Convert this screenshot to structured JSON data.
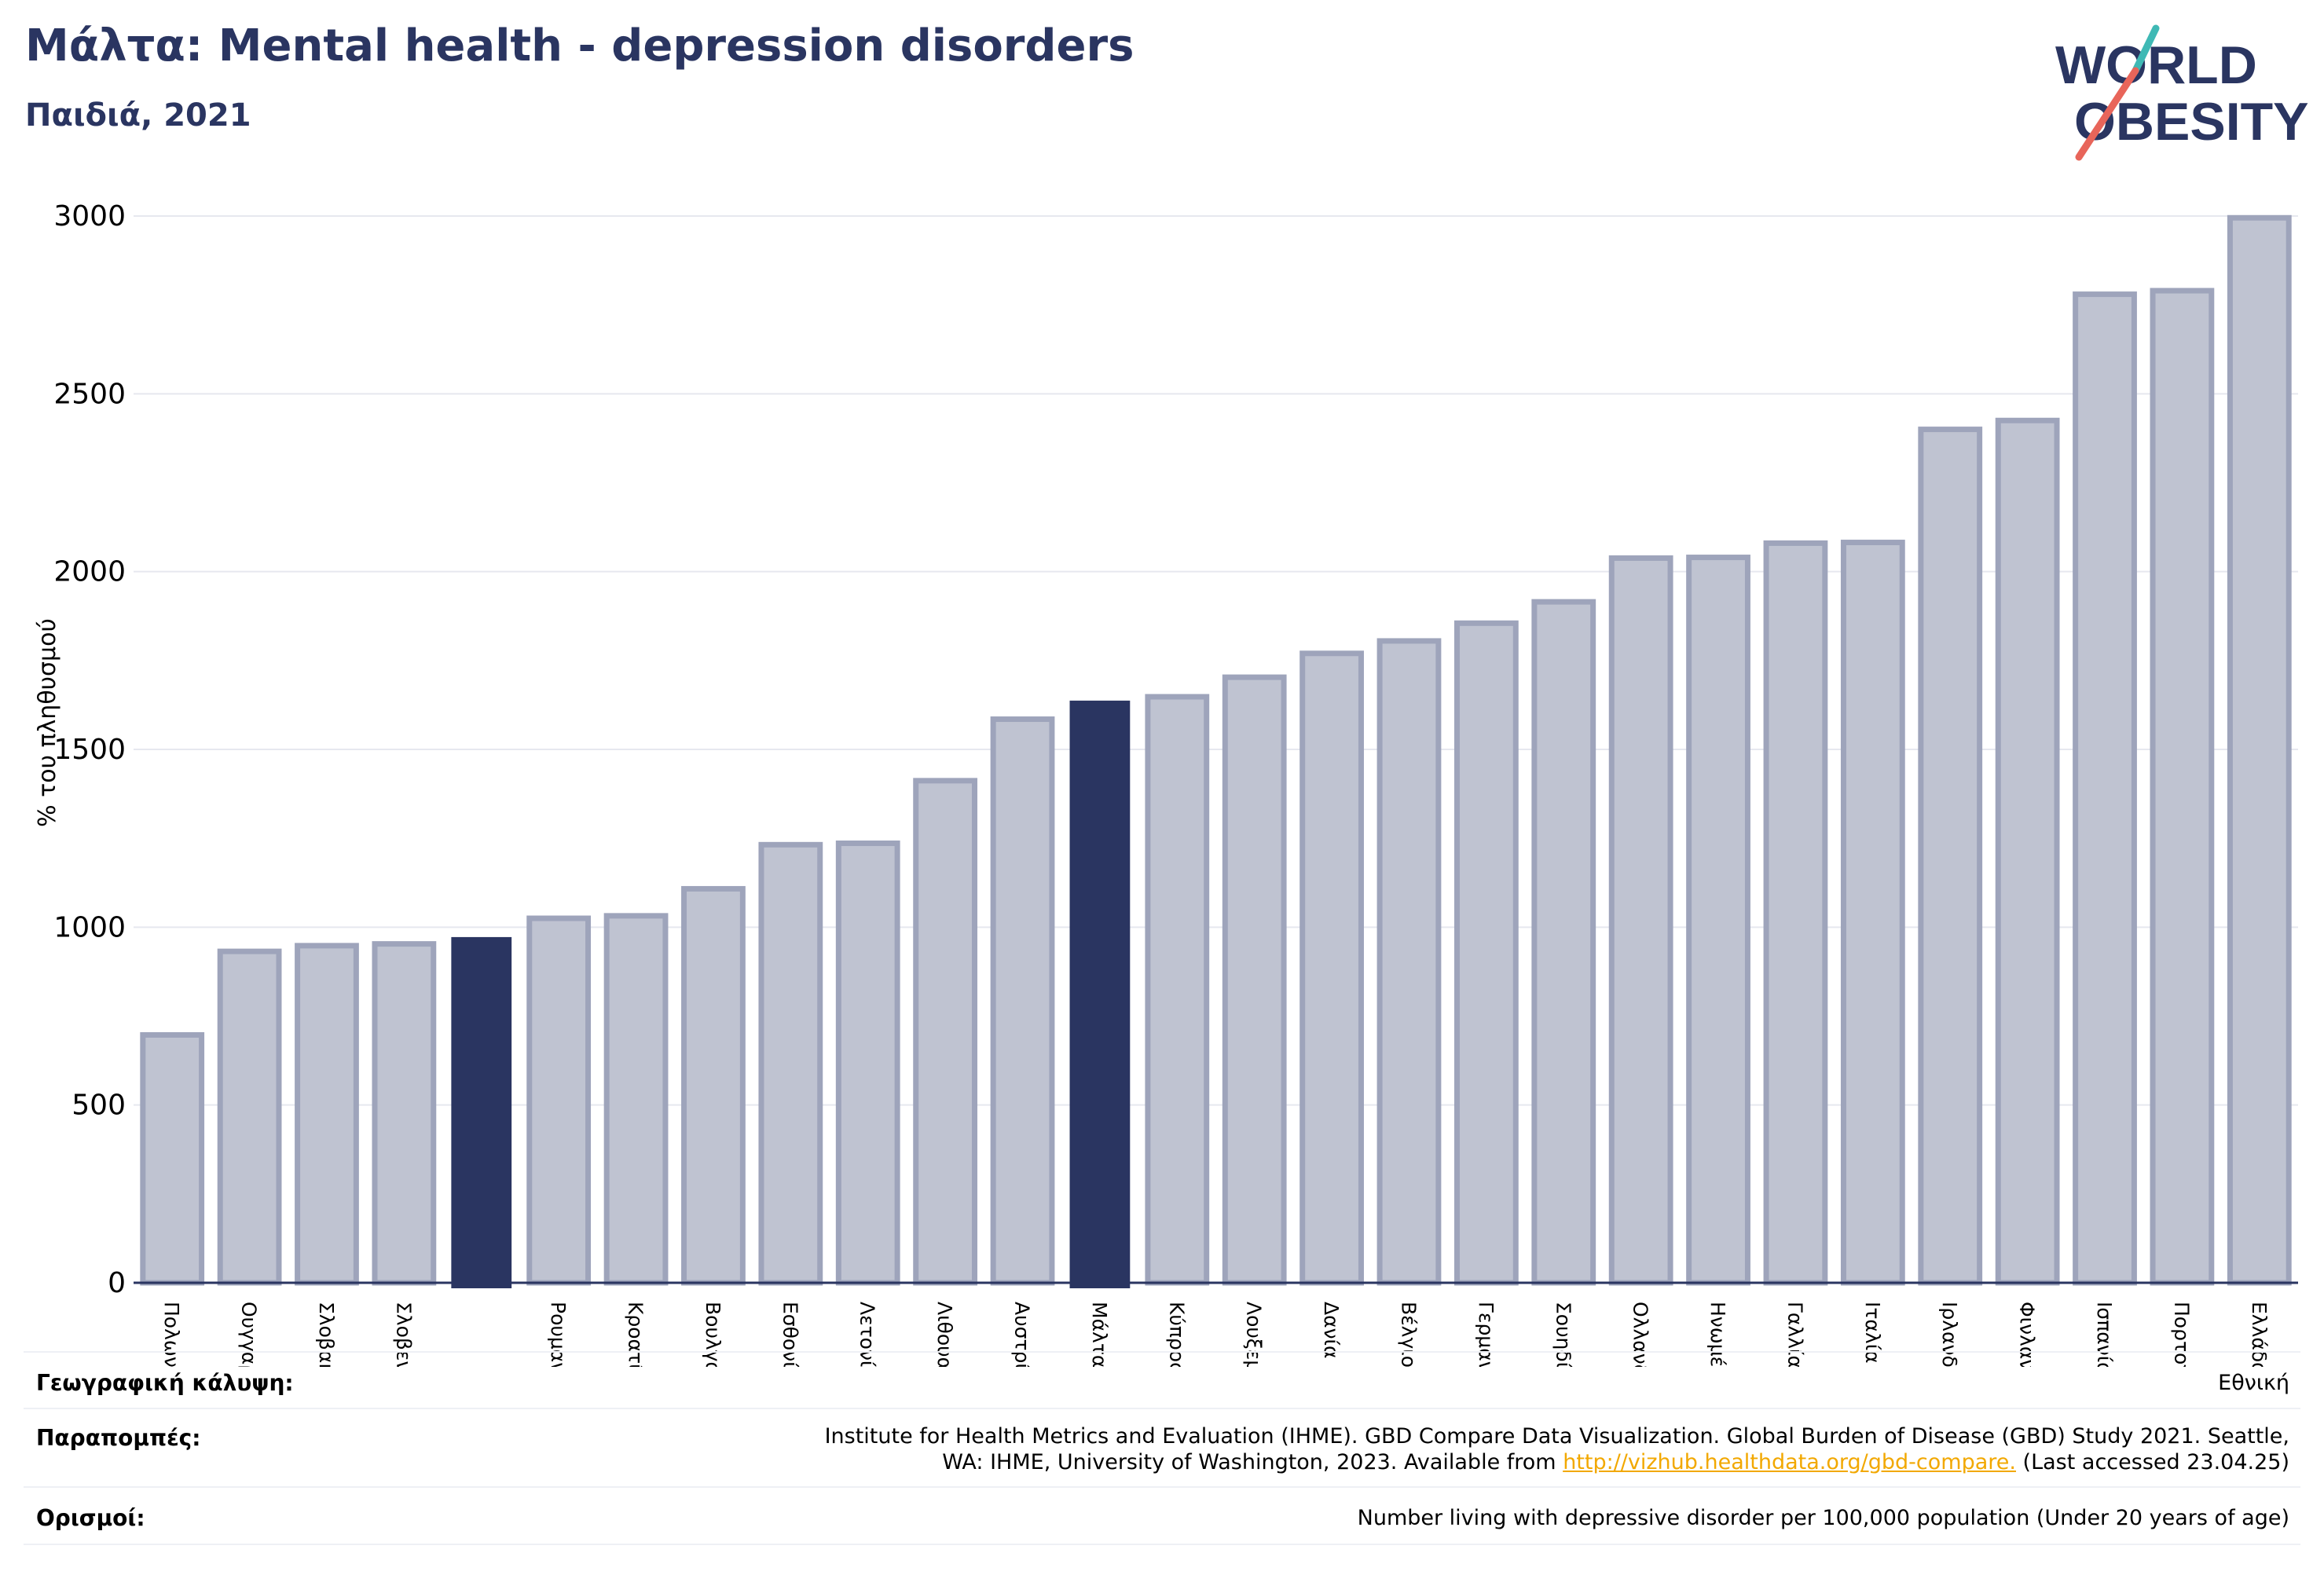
{
  "header": {
    "title": "Μάλτα: Mental health - depression disorders",
    "subtitle": "Παιδιά, 2021"
  },
  "logo": {
    "line1": "WORLD",
    "line2": "OBESITY",
    "icon": "world-obesity-logo"
  },
  "colors": {
    "highlight": "#2a3561",
    "bar_fill": "#bfc3d1",
    "bar_stroke": "#9ea4bb",
    "grid": "#e6e8ef",
    "logo_teal": "#3fb9b5",
    "logo_coral": "#e8655a"
  },
  "chart_data": {
    "type": "bar",
    "ylabel": "% του πληθυσμού",
    "ylim": [
      0,
      3000
    ],
    "yticks": [
      0,
      500,
      1000,
      1500,
      2000,
      2500,
      3000
    ],
    "grid": true,
    "categories": [
      "Πολωνία",
      "Ουγγαρία",
      "Σλοβακία",
      "Σλοβενία",
      "",
      "Ρουμανία",
      "Κροατία",
      "Βουλγαρία",
      "Εσθονία",
      "Λετονία",
      "Λιθουανία",
      "Αυστρία",
      "Μάλτα",
      "Κύπρος",
      "Λουξεμβούργο",
      "Δανία",
      "Βέλγιο",
      "Γερμανία",
      "Σουηδία",
      "Ολλανδία",
      "Ηνωμένο Βασίλειο",
      "Γαλλία",
      "Ιταλία",
      "Ιρλανδία",
      "Φινλανδία",
      "Ισπανία",
      "Πορτογαλία",
      "Ελλάδα"
    ],
    "values": [
      697,
      932,
      948,
      953,
      970,
      1025,
      1032,
      1108,
      1232,
      1236,
      1412,
      1585,
      1635,
      1648,
      1703,
      1770,
      1805,
      1855,
      1915,
      2038,
      2040,
      2080,
      2082,
      2400,
      2425,
      2780,
      2790,
      2995
    ],
    "highlighted": [
      4,
      12
    ]
  },
  "footer": {
    "coverage_label": "Γεωγραφική κάλυψη:",
    "coverage_value": "Εθνική",
    "references_label": "Παραπομπές:",
    "references_line1": "Institute for Health Metrics and Evaluation (IHME). GBD Compare Data Visualization. Global Burden of Disease (GBD) Study 2021. Seattle,",
    "references_line2_pre": "WA: IHME, University of Washington, 2023. Available from ",
    "references_link": "http://vizhub.healthdata.org/gbd-compare.",
    "references_line2_post": " (Last accessed 23.04.25)",
    "definitions_label": "Ορισμοί:",
    "definitions_value": "Number living with depressive disorder per 100,000 population (Under 20 years of age)"
  }
}
